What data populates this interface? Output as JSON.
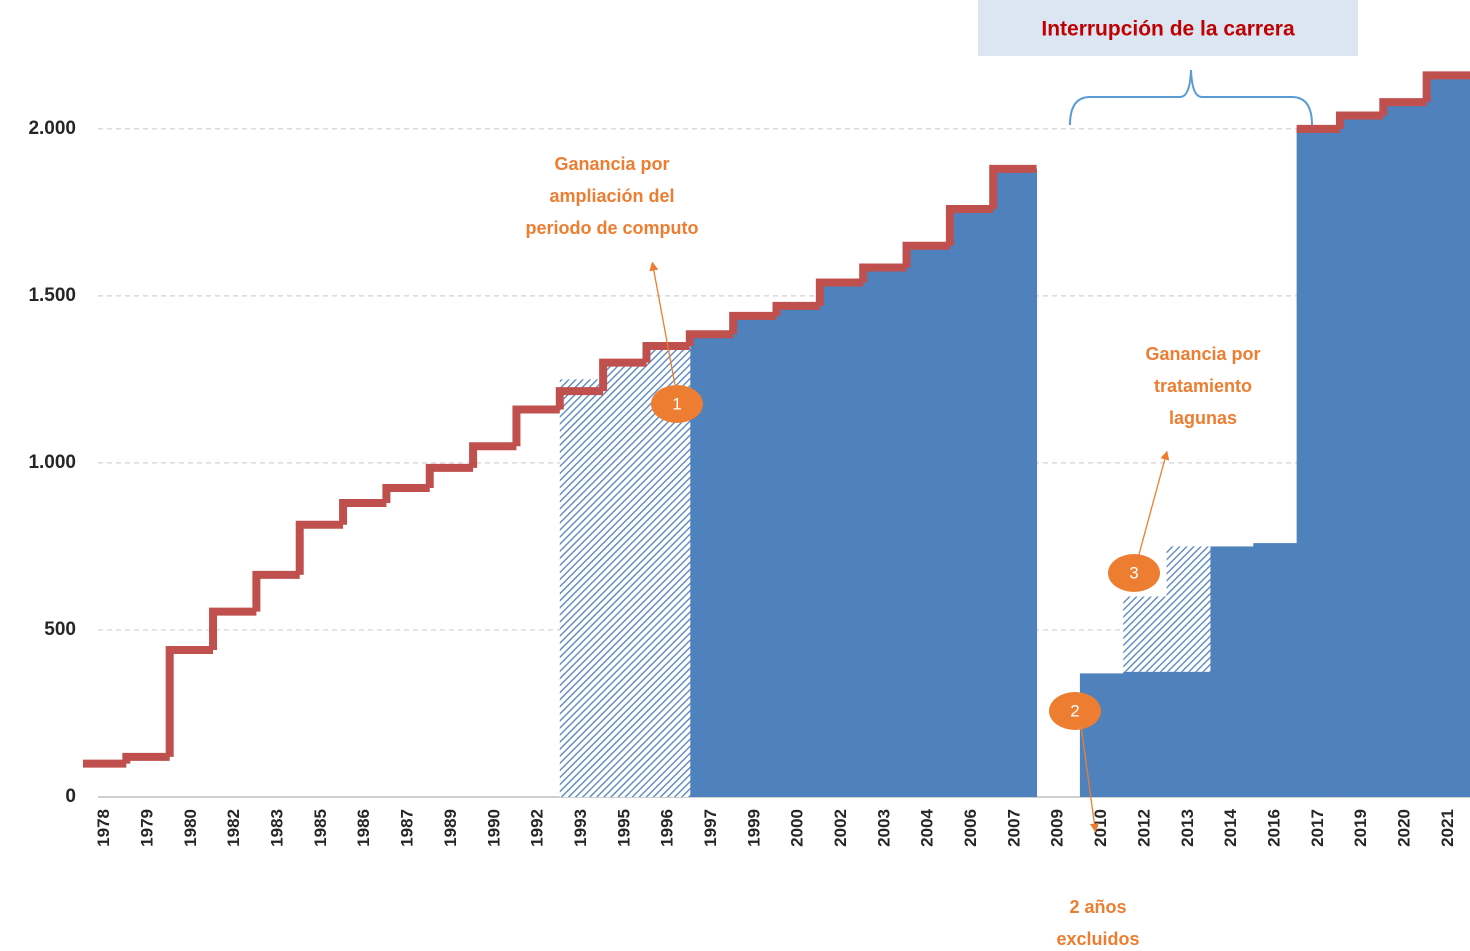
{
  "chart_data": {
    "type": "step",
    "ylim": [
      0,
      2200
    ],
    "yticks": [
      0,
      500,
      {
        "value": 1000,
        "label": "1.000"
      },
      {
        "value": 1500,
        "label": "1.500"
      },
      {
        "value": 2000,
        "label": "2.000"
      }
    ],
    "grid": true,
    "categories": [
      "1978",
      "1979",
      "1980",
      "1982",
      "1983",
      "1985",
      "1986",
      "1987",
      "1989",
      "1990",
      "1992",
      "1993",
      "1995",
      "1996",
      "1997",
      "1999",
      "2000",
      "2002",
      "2003",
      "2004",
      "2006",
      "2007",
      "2009",
      "2010",
      "2012",
      "2013",
      "2014",
      "2016",
      "2017",
      "2019",
      "2020",
      "2021"
    ],
    "series": [
      {
        "color": "#c0504d",
        "style": "line",
        "values": [
          100,
          120,
          440,
          555,
          665,
          815,
          880,
          925,
          985,
          1050,
          1160,
          1215,
          1300,
          1350,
          1385,
          1440,
          1470,
          1540,
          1585,
          1650,
          1760,
          1880,
          null,
          null,
          null,
          null,
          null,
          null,
          2000,
          2040,
          2080,
          2160
        ]
      },
      {
        "color": "#4f81bd",
        "style": "area",
        "values": [
          null,
          null,
          null,
          null,
          null,
          null,
          null,
          null,
          null,
          null,
          null,
          null,
          null,
          null,
          1385,
          1440,
          1470,
          1540,
          1585,
          1650,
          1760,
          1880,
          null,
          370,
          375,
          375,
          750,
          760,
          2000,
          2040,
          2080,
          2160
        ]
      },
      {
        "color": "#4f81bd",
        "style": "hatch",
        "values": [
          null,
          null,
          null,
          null,
          null,
          null,
          null,
          null,
          null,
          null,
          null,
          1250,
          1300,
          1350,
          null,
          null,
          null,
          null,
          null,
          null,
          null,
          null,
          null,
          null,
          225,
          375,
          null,
          null,
          null,
          null,
          null,
          null
        ]
      }
    ],
    "box": "Interrupción de la carrera",
    "notes": [
      [
        "Ganancia por",
        "ampliación del",
        "periodo de computo"
      ],
      [
        "Ganancia por",
        "tratamiento",
        "lagunas"
      ],
      [
        "2 años",
        "excluidos"
      ]
    ],
    "markers": [
      "1",
      "2",
      "3"
    ]
  }
}
